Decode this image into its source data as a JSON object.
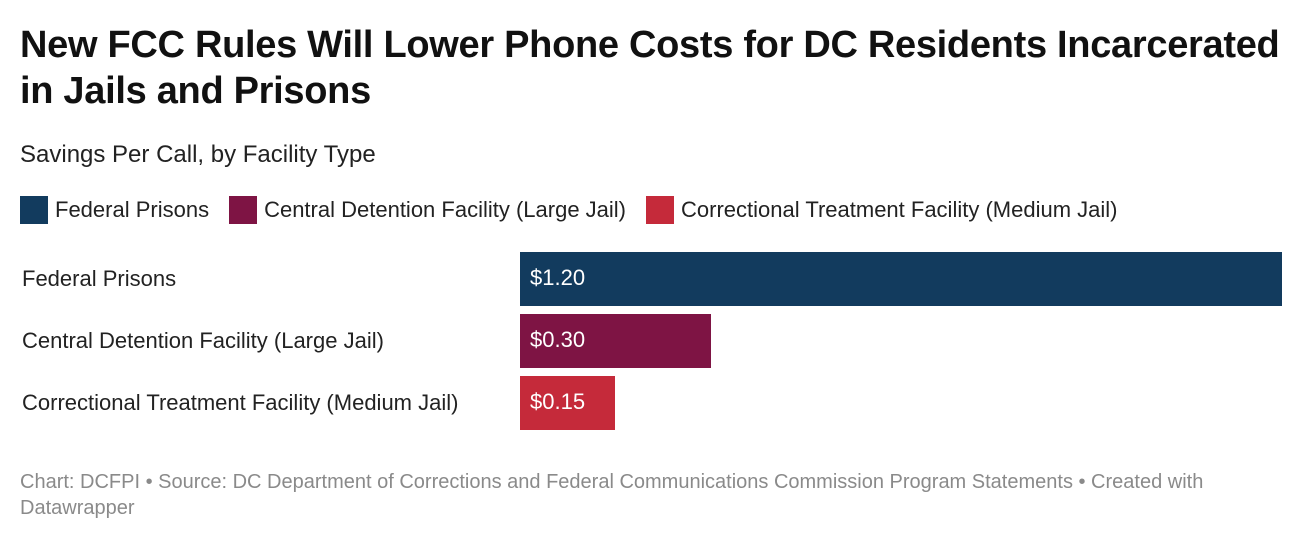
{
  "title": "New FCC Rules Will Lower Phone Costs for DC Residents Incarcerated in Jails and Prisons",
  "subtitle": "Savings Per Call, by Facility Type",
  "footer": "Chart: DCFPI • Source: DC Department of Corrections and Federal Communications Commission Program Statements • Created with Datawrapper",
  "chart_data": {
    "type": "bar",
    "orientation": "horizontal",
    "title": "New FCC Rules Will Lower Phone Costs for DC Residents Incarcerated in Jails and Prisons",
    "subtitle": "Savings Per Call, by Facility Type",
    "categories": [
      "Federal Prisons",
      "Central Detention Facility (Large Jail)",
      "Correctional Treatment Facility (Medium Jail)"
    ],
    "values": [
      1.2,
      0.3,
      0.15
    ],
    "value_labels": [
      "$1.20",
      "$0.30",
      "$0.15"
    ],
    "colors": [
      "#123b5e",
      "#7e1444",
      "#c52a3a"
    ],
    "legend": [
      {
        "label": "Federal Prisons",
        "color": "#123b5e"
      },
      {
        "label": "Central Detention Facility (Large Jail)",
        "color": "#7e1444"
      },
      {
        "label": "Correctional Treatment Facility (Medium Jail)",
        "color": "#c52a3a"
      }
    ],
    "legend_position": "top-left",
    "xlim": [
      0,
      1.2
    ],
    "xlabel": "",
    "ylabel": "",
    "grid": false
  }
}
